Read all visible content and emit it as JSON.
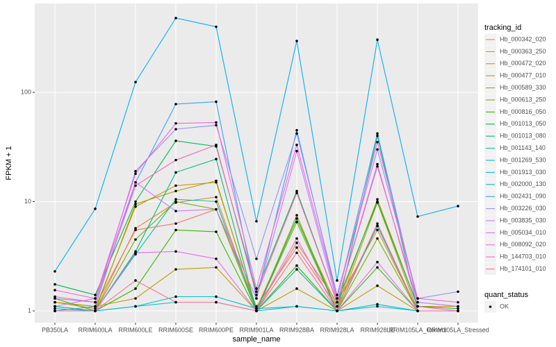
{
  "chart_data": {
    "type": "line",
    "x_label": "sample_name",
    "y_label": "FPKM + 1",
    "categories": [
      "PB350LA",
      "RRIM600LA",
      "RRIM600LE",
      "RRIM600SE",
      "RRIM600PE",
      "RRIM901LA",
      "RRIM928BA",
      "RRIM928LA",
      "RRIM928LE",
      "RRIM105LA_Control",
      "RRIM105LA_Stressed"
    ],
    "ylim": [
      0.78,
      650
    ],
    "yticks": [
      1,
      10,
      100
    ],
    "log_y": true,
    "grid": true,
    "legend_title": "tracking_id",
    "point_color": "#000000",
    "quant_status": {
      "title": "quant_status",
      "labels": [
        "OK"
      ]
    },
    "series": [
      {
        "name": "Hb_000342_020",
        "color": "#F8766D",
        "values": [
          1.2,
          1.1,
          5.5,
          6.3,
          8.5,
          1.1,
          3.8,
          1.1,
          6.0,
          1.0,
          1.0
        ]
      },
      {
        "name": "Hb_000363_250",
        "color": "#EA8331",
        "values": [
          1.1,
          1.0,
          5.7,
          9.8,
          11,
          1.0,
          4.2,
          1.2,
          5.5,
          1.0,
          1.0
        ]
      },
      {
        "name": "Hb_000472_020",
        "color": "#D89000",
        "values": [
          1.2,
          1.05,
          9.0,
          14,
          15,
          1.05,
          7.0,
          1.1,
          10.5,
          1.1,
          1.1
        ]
      },
      {
        "name": "Hb_000477_010",
        "color": "#C09B00",
        "values": [
          1.2,
          1.1,
          1.3,
          2.4,
          2.5,
          1.0,
          1.6,
          1.0,
          1.7,
          1.0,
          1.0
        ]
      },
      {
        "name": "Hb_000589_330",
        "color": "#A3A500",
        "values": [
          1.1,
          1.0,
          9.5,
          12.5,
          15.5,
          1.0,
          7.5,
          1.0,
          9.8,
          1.0,
          1.0
        ]
      },
      {
        "name": "Hb_000613_250",
        "color": "#7CAE00",
        "values": [
          1.0,
          1.0,
          4.5,
          10,
          8.5,
          1.0,
          6.5,
          1.0,
          4.6,
          1.0,
          1.0
        ]
      },
      {
        "name": "Hb_000816_050",
        "color": "#39B600",
        "values": [
          1.3,
          1.0,
          1.6,
          5.5,
          5.3,
          1.0,
          2.6,
          1.0,
          2.5,
          1.0,
          1.0
        ]
      },
      {
        "name": "Hb_001013_050",
        "color": "#00BB4E",
        "values": [
          1.75,
          1.4,
          10,
          36,
          32,
          1.5,
          12.5,
          1.2,
          10,
          1.1,
          1.05
        ]
      },
      {
        "name": "Hb_001013_080",
        "color": "#00BF7D",
        "values": [
          1.0,
          1.0,
          3.5,
          18.5,
          24.5,
          1.0,
          7.0,
          1.0,
          40,
          1.0,
          1.0
        ]
      },
      {
        "name": "Hb_001143_140",
        "color": "#00C1A3",
        "values": [
          1.1,
          1.0,
          3.3,
          10.5,
          10,
          1.0,
          2.4,
          1.0,
          6.0,
          1.0,
          1.0
        ]
      },
      {
        "name": "Hb_001269_530",
        "color": "#00BFC4",
        "values": [
          1.05,
          1.0,
          1.1,
          1.35,
          1.35,
          1.05,
          1.1,
          1.0,
          1.15,
          1.0,
          1.0
        ]
      },
      {
        "name": "Hb_001913_030",
        "color": "#00BAE0",
        "values": [
          1.0,
          1.0,
          1.1,
          1.2,
          1.2,
          1.0,
          1.1,
          1.0,
          1.1,
          1.0,
          1.0
        ]
      },
      {
        "name": "Hb_002000_130",
        "color": "#00B0F6",
        "values": [
          2.3,
          8.6,
          124,
          478,
          398,
          6.6,
          295,
          1.9,
          303,
          7.3,
          9.1
        ]
      },
      {
        "name": "Hb_002431_090",
        "color": "#35A2FF",
        "values": [
          1.0,
          1.1,
          15,
          78,
          82,
          1.3,
          45,
          1.3,
          42,
          1.2,
          1.1
        ]
      },
      {
        "name": "Hb_003226_030",
        "color": "#9590FF",
        "values": [
          1.3,
          1.2,
          19,
          46,
          50,
          3.0,
          42,
          1.4,
          30,
          1.3,
          1.5
        ]
      },
      {
        "name": "Hb_003835_030",
        "color": "#C77CFF",
        "values": [
          1.1,
          1.3,
          15,
          8.2,
          8.5,
          1.3,
          29,
          1.2,
          21,
          1.2,
          1.1
        ]
      },
      {
        "name": "Hb_005034_010",
        "color": "#E76BF3",
        "values": [
          1.0,
          1.0,
          3.4,
          3.5,
          3.0,
          1.0,
          4.6,
          1.0,
          2.8,
          1.0,
          1.0
        ]
      },
      {
        "name": "Hb_008092_020",
        "color": "#FA62DB",
        "values": [
          1.55,
          1.3,
          18,
          52,
          53,
          1.6,
          33,
          1.3,
          35,
          1.3,
          1.2
        ]
      },
      {
        "name": "Hb_144703_010",
        "color": "#FF62BC",
        "values": [
          1.35,
          1.2,
          14,
          24,
          33,
          1.4,
          12,
          1.2,
          22,
          1.1,
          1.0
        ]
      },
      {
        "name": "Hb_174101_010",
        "color": "#FF6C91",
        "values": [
          1.0,
          1.0,
          1.9,
          1.2,
          1.2,
          1.0,
          3.4,
          1.0,
          6.3,
          1.0,
          1.0
        ]
      }
    ]
  }
}
